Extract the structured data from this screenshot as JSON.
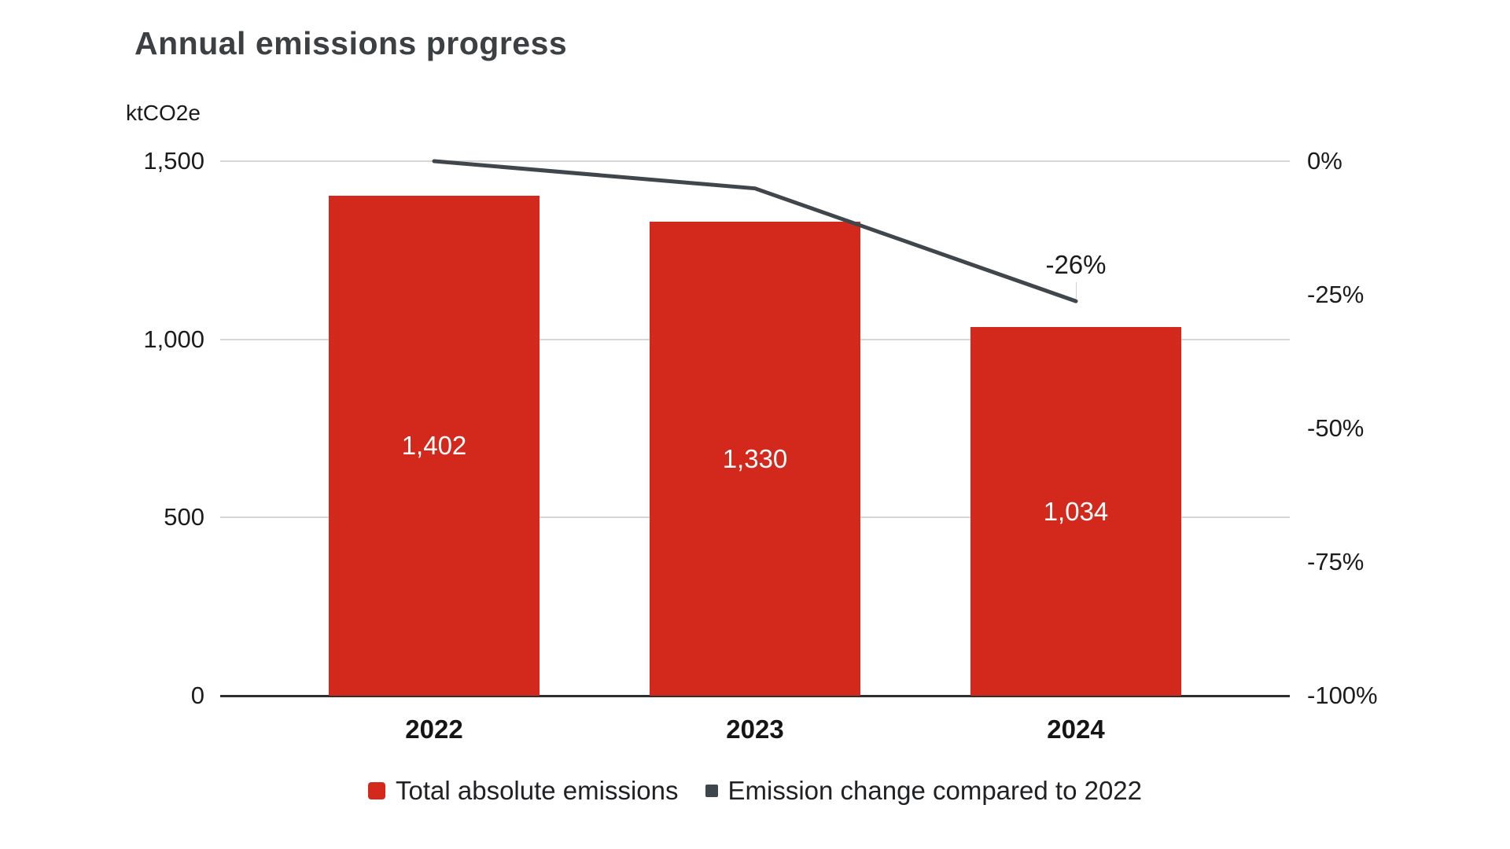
{
  "chart_data": {
    "type": "combo-bar-line",
    "title": "Annual emissions progress",
    "categories": [
      "2022",
      "2023",
      "2024"
    ],
    "left_axis": {
      "unit_label": "ktCO2e",
      "min": 0,
      "max": 1500,
      "tick_values": [
        1500,
        1000,
        500,
        0
      ],
      "tick_labels": [
        "1,500",
        "1,000",
        "500",
        "0"
      ]
    },
    "right_axis": {
      "min": -100,
      "max": 0,
      "tick_values": [
        0,
        -25,
        -50,
        -75,
        -100
      ],
      "tick_labels": [
        "0%",
        "-25%",
        "-50%",
        "-75%",
        "-100%"
      ]
    },
    "series": [
      {
        "name": "Total absolute emissions",
        "type": "bar",
        "axis": "left",
        "color": "#d3291d",
        "values": [
          1402,
          1330,
          1034
        ],
        "value_labels": [
          "1,402",
          "1,330",
          "1,034"
        ],
        "value_label_color": "#ffffff"
      },
      {
        "name": "Emission change compared to 2022",
        "type": "line",
        "axis": "right",
        "color": "#3f464c",
        "values": [
          0,
          -5.1,
          -26.2
        ],
        "annotation": {
          "text": "-26%",
          "point_index": 2
        }
      }
    ],
    "legend_position": "bottom",
    "grid": true,
    "background": "#ffffff"
  }
}
